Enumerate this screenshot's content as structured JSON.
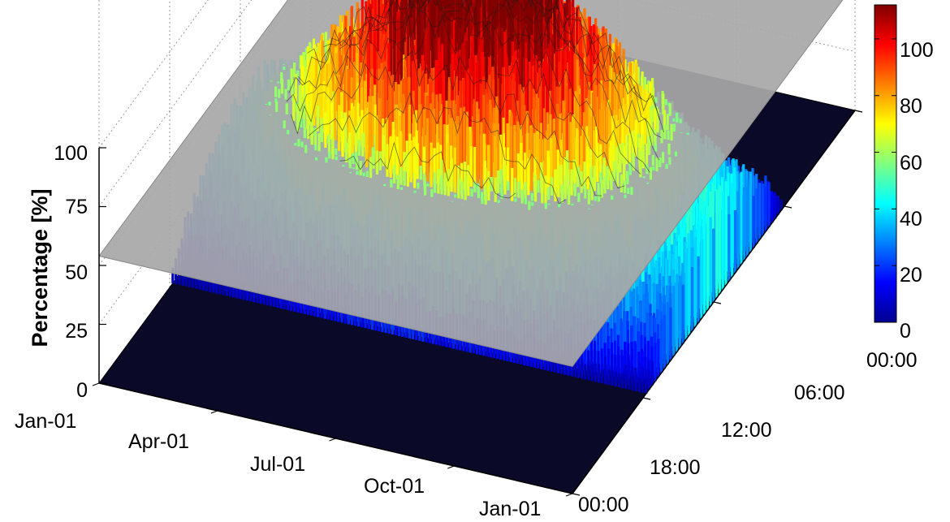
{
  "chart_data": {
    "type": "surface3d",
    "zlabel": "Percentage [%]",
    "x_axis": {
      "ticks": [
        "Jan-01",
        "Apr-01",
        "Jul-01",
        "Oct-01",
        "Jan-01"
      ]
    },
    "y_axis": {
      "ticks": [
        "00:00",
        "06:00",
        "12:00",
        "18:00",
        "00:00"
      ]
    },
    "z_axis": {
      "ticks": [
        "0",
        "25",
        "50",
        "75",
        "100"
      ],
      "zlim": [
        0,
        100
      ]
    },
    "colorbar": {
      "ticks": [
        "0",
        "20",
        "40",
        "60",
        "80",
        "100"
      ],
      "range": [
        0,
        112
      ],
      "colormap": "jet"
    },
    "threshold_plane": {
      "z": 54,
      "color": "#a8a8a8"
    },
    "surface_description": {
      "active_hours": [
        "06:00",
        "18:00"
      ],
      "peak_month": "Jul",
      "peak_value": 112,
      "winter_peak": 40
    }
  }
}
